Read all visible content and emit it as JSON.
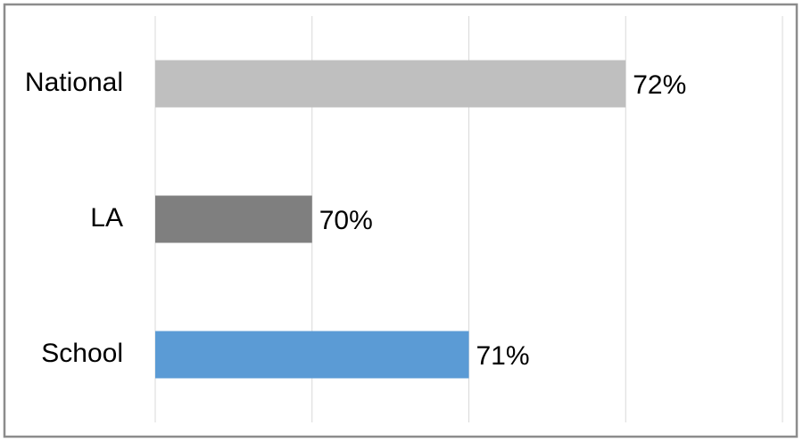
{
  "chart_data": {
    "type": "bar",
    "orientation": "horizontal",
    "categories": [
      "National",
      "LA",
      "School"
    ],
    "values": [
      72,
      70,
      71
    ],
    "value_labels": [
      "72%",
      "70%",
      "71%"
    ],
    "colors": [
      "#bfbfbf",
      "#7f7f7f",
      "#5b9bd5"
    ],
    "xlim": [
      69,
      73
    ],
    "xticks": [
      69,
      70,
      71,
      72,
      73
    ],
    "grid": true
  }
}
